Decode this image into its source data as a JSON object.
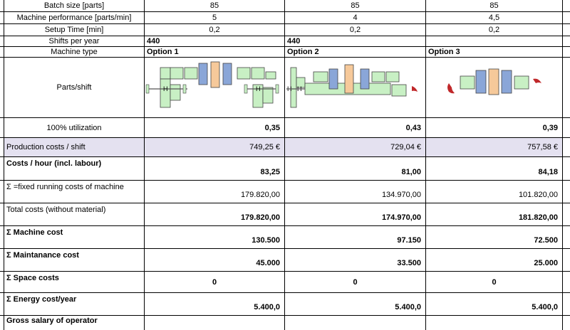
{
  "rows": {
    "batch_size": {
      "label": "Batch size [parts]",
      "opt1": "85",
      "opt2": "85",
      "opt3": "85"
    },
    "machine_performance": {
      "label": "Machine performance [parts/min]",
      "opt1": "5",
      "opt2": "4",
      "opt3": "4,5"
    },
    "setup_time": {
      "label": "Setup Time [min]",
      "opt1": "0,2",
      "opt2": "0,2",
      "opt3": "0,2"
    },
    "shifts_per_year": {
      "label": "Shifts per year",
      "opt1": "440",
      "opt2": "440"
    },
    "machine_type": {
      "label": "Machine type",
      "opt1": "Option 1",
      "opt2": "Option 2",
      "opt3": "Option 3"
    },
    "parts_shift": {
      "label": "Parts/shift"
    },
    "utilization": {
      "label": "100% utilization",
      "opt1": "0,35",
      "opt2": "0,43",
      "opt3": "0,39"
    },
    "production_costs": {
      "label": "Production costs / shift",
      "opt1": "749,25 €",
      "opt2": "729,04 €",
      "opt3": "757,58 €"
    },
    "costs_hour": {
      "label": "Costs / hour (incl. labour)",
      "opt1": "83,25",
      "opt2": "81,00",
      "opt3": "84,18"
    },
    "fixed_running": {
      "label": "Σ =fixed running costs of machine",
      "opt1": "179.820,00",
      "opt2": "134.970,00",
      "opt3": "101.820,00"
    },
    "total_costs": {
      "label": "Total costs (without material)",
      "opt1": "179.820,00",
      "opt2": "174.970,00",
      "opt3": "181.820,00"
    },
    "machine_cost": {
      "label": "Σ Machine cost",
      "opt1": "130.500",
      "opt2": "97.150",
      "opt3": "72.500"
    },
    "maintenance_cost": {
      "label": "Σ Maintanance cost",
      "opt1": "45.000",
      "opt2": "33.500",
      "opt3": "25.000"
    },
    "space_costs": {
      "label": "Σ Space costs",
      "opt1": "0",
      "opt2": "0",
      "opt3": "0"
    },
    "energy_cost": {
      "label": "Σ Energy cost/year",
      "opt1": "5.400,0",
      "opt2": "5.400,0",
      "opt3": "5.400,0"
    },
    "gross_salary": {
      "label": "Gross salary of operator"
    }
  },
  "colors": {
    "highlight_row": "#e4e1f0",
    "part_green": "#c8f0c4",
    "part_blue": "#8aa6d8",
    "part_orange": "#f6c99a",
    "accent_red": "#c0282a"
  }
}
